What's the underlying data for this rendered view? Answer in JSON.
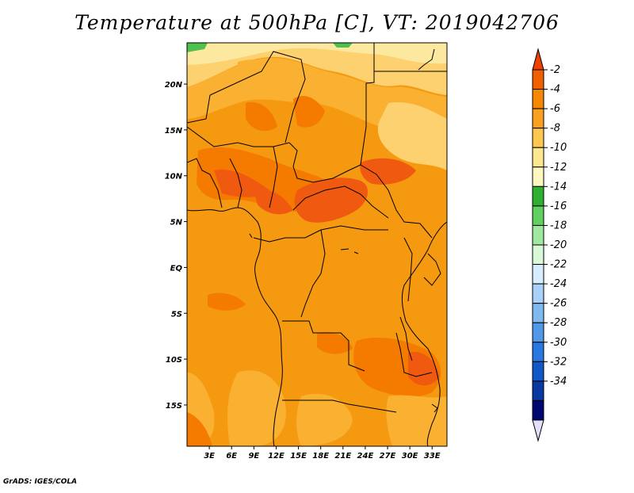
{
  "title": "Temperature at 500hPa [C], VT: 2019042706",
  "credit": "GrADS: IGES/COLA",
  "map": {
    "lon_range": [
      0,
      35
    ],
    "lat_range": [
      -19.5,
      24.5
    ],
    "lat_ticks": [
      {
        "value": 20,
        "label": "20N"
      },
      {
        "value": 15,
        "label": "15N"
      },
      {
        "value": 10,
        "label": "10N"
      },
      {
        "value": 5,
        "label": "5N"
      },
      {
        "value": 0,
        "label": "EQ"
      },
      {
        "value": -5,
        "label": "5S"
      },
      {
        "value": -10,
        "label": "10S"
      },
      {
        "value": -15,
        "label": "15S"
      }
    ],
    "lon_ticks": [
      {
        "value": 3,
        "label": "3E"
      },
      {
        "value": 6,
        "label": "6E"
      },
      {
        "value": 9,
        "label": "9E"
      },
      {
        "value": 12,
        "label": "12E"
      },
      {
        "value": 15,
        "label": "15E"
      },
      {
        "value": 18,
        "label": "18E"
      },
      {
        "value": 21,
        "label": "21E"
      },
      {
        "value": 24,
        "label": "24E"
      },
      {
        "value": 27,
        "label": "27E"
      },
      {
        "value": 30,
        "label": "30E"
      },
      {
        "value": 33,
        "label": "33E"
      }
    ]
  },
  "colorbar": {
    "levels": [
      "-2",
      "-4",
      "-6",
      "-8",
      "-10",
      "-12",
      "-14",
      "-16",
      "-18",
      "-20",
      "-22",
      "-24",
      "-26",
      "-28",
      "-30",
      "-32",
      "-34"
    ],
    "colors": [
      "#f04000",
      "#f06000",
      "#f58800",
      "#faa020",
      "#fdc850",
      "#fde890",
      "#fef8c0",
      "#30b030",
      "#60d060",
      "#a0e8a0",
      "#d8f8d8",
      "#d8ecff",
      "#a8d0f8",
      "#80b8f0",
      "#5098e8",
      "#2878e0",
      "#1058c8",
      "#0838a0",
      "#000870",
      "#e0e0f8"
    ]
  },
  "colors": {
    "deep_orange": "#f05a10",
    "dark_orange": "#f57a00",
    "orange": "#f59a10",
    "light_orange": "#fab030",
    "pale_yellow": "#fdd070",
    "very_pale": "#fde8a0",
    "green": "#50c050"
  }
}
